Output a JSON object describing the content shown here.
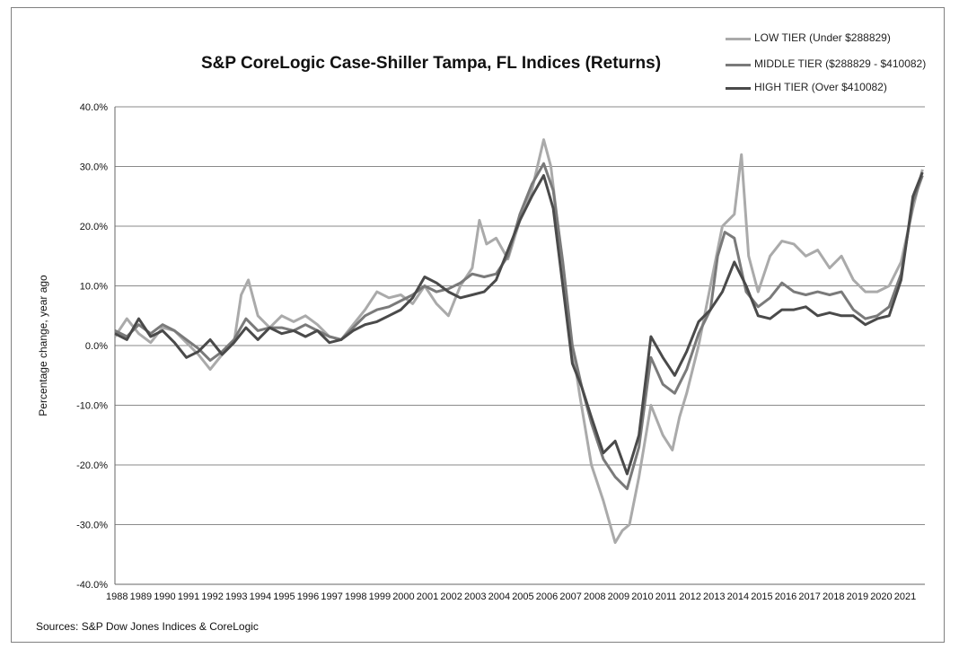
{
  "chart_data": {
    "type": "line",
    "title": "S&P CoreLogic Case-Shiller Tampa, FL Indices (Returns)",
    "ylabel": "Percentage change, year ago",
    "xlabel": "",
    "ylim": [
      -40,
      40
    ],
    "y_ticks": [
      "40.0%",
      "30.0%",
      "20.0%",
      "10.0%",
      "0.0%",
      "-10.0%",
      "-20.0%",
      "-30.0%",
      "-40.0%"
    ],
    "y_tick_values": [
      40,
      30,
      20,
      10,
      0,
      -10,
      -20,
      -30,
      -40
    ],
    "xlim": [
      1988,
      2022
    ],
    "x_ticks": [
      "1988",
      "1989",
      "1990",
      "1991",
      "1992",
      "1993",
      "1994",
      "1995",
      "1996",
      "1997",
      "1998",
      "1999",
      "2000",
      "2001",
      "2002",
      "2003",
      "2004",
      "2005",
      "2006",
      "2007",
      "2008",
      "2009",
      "2010",
      "2011",
      "2012",
      "2013",
      "2014",
      "2015",
      "2016",
      "2017",
      "2018",
      "2019",
      "2020",
      "2021"
    ],
    "grid": "horizontal",
    "legend_position": "top-right",
    "series": [
      {
        "name": "LOW TIER (Under $288829)",
        "color": "#aaaaaa",
        "x": [
          1988.0,
          1988.5,
          1989.0,
          1989.5,
          1990.0,
          1990.5,
          1991.0,
          1991.5,
          1992.0,
          1992.5,
          1993.0,
          1993.3,
          1993.6,
          1994.0,
          1994.5,
          1995.0,
          1995.5,
          1996.0,
          1996.5,
          1997.0,
          1997.5,
          1998.0,
          1998.5,
          1999.0,
          1999.5,
          2000.0,
          2000.5,
          2001.0,
          2001.5,
          2002.0,
          2002.5,
          2003.0,
          2003.3,
          2003.6,
          2004.0,
          2004.5,
          2005.0,
          2005.5,
          2006.0,
          2006.3,
          2006.6,
          2007.0,
          2007.5,
          2008.0,
          2008.5,
          2009.0,
          2009.3,
          2009.6,
          2010.0,
          2010.5,
          2011.0,
          2011.4,
          2011.7,
          2012.0,
          2012.5,
          2013.0,
          2013.5,
          2014.0,
          2014.3,
          2014.6,
          2015.0,
          2015.5,
          2016.0,
          2016.5,
          2017.0,
          2017.5,
          2018.0,
          2018.5,
          2019.0,
          2019.5,
          2020.0,
          2020.5,
          2021.0,
          2021.5,
          2021.9
        ],
        "values": [
          1.5,
          4.5,
          2.0,
          0.5,
          3.0,
          2.5,
          0.5,
          -1.5,
          -4.0,
          -1.5,
          0.5,
          8.5,
          11.0,
          5.0,
          3.0,
          5.0,
          4.0,
          5.0,
          3.5,
          1.5,
          1.0,
          3.5,
          6.0,
          9.0,
          8.0,
          8.5,
          7.0,
          10.0,
          7.0,
          5.0,
          10.0,
          13.0,
          21.0,
          17.0,
          18.0,
          14.5,
          21.0,
          26.0,
          34.5,
          30.0,
          20.0,
          5.0,
          -8.0,
          -20.0,
          -26.0,
          -33.0,
          -31.0,
          -30.0,
          -22.0,
          -10.0,
          -15.0,
          -17.5,
          -12.0,
          -8.0,
          0.0,
          10.0,
          20.0,
          22.0,
          32.0,
          15.0,
          9.0,
          15.0,
          17.5,
          17.0,
          15.0,
          16.0,
          13.0,
          15.0,
          11.0,
          9.0,
          9.0,
          10.0,
          14.0,
          23.0,
          29.5
        ]
      },
      {
        "name": "MIDDLE TIER ($288829 - $410082)",
        "color": "#7a7a7a",
        "x": [
          1988.0,
          1988.5,
          1989.0,
          1989.5,
          1990.0,
          1990.5,
          1991.0,
          1991.5,
          1992.0,
          1992.5,
          1993.0,
          1993.5,
          1994.0,
          1994.5,
          1995.0,
          1995.5,
          1996.0,
          1996.5,
          1997.0,
          1997.5,
          1998.0,
          1998.5,
          1999.0,
          1999.5,
          2000.0,
          2000.5,
          2001.0,
          2001.5,
          2002.0,
          2002.5,
          2003.0,
          2003.5,
          2004.0,
          2004.5,
          2005.0,
          2005.5,
          2006.0,
          2006.4,
          2006.8,
          2007.2,
          2007.6,
          2008.0,
          2008.5,
          2009.0,
          2009.5,
          2010.0,
          2010.5,
          2011.0,
          2011.5,
          2012.0,
          2012.5,
          2013.0,
          2013.3,
          2013.6,
          2014.0,
          2014.5,
          2015.0,
          2015.5,
          2016.0,
          2016.5,
          2017.0,
          2017.5,
          2018.0,
          2018.5,
          2019.0,
          2019.5,
          2020.0,
          2020.5,
          2021.0,
          2021.5,
          2021.9
        ],
        "values": [
          2.5,
          1.5,
          3.5,
          2.0,
          3.5,
          2.5,
          1.0,
          -0.5,
          -2.5,
          -1.0,
          1.0,
          4.5,
          2.5,
          3.0,
          3.0,
          2.5,
          3.5,
          2.5,
          1.5,
          1.0,
          3.0,
          5.0,
          6.0,
          6.5,
          7.5,
          8.5,
          10.0,
          9.0,
          9.5,
          10.5,
          12.0,
          11.5,
          12.0,
          15.0,
          22.0,
          27.0,
          30.5,
          26.0,
          14.0,
          0.0,
          -7.0,
          -13.0,
          -19.0,
          -22.0,
          -24.0,
          -17.0,
          -2.0,
          -6.5,
          -8.0,
          -4.0,
          2.0,
          6.0,
          15.0,
          19.0,
          18.0,
          9.0,
          6.5,
          8.0,
          10.5,
          9.0,
          8.5,
          9.0,
          8.5,
          9.0,
          6.0,
          4.5,
          5.0,
          6.5,
          12.0,
          24.0,
          28.5
        ]
      },
      {
        "name": "HIGH TIER (Over $410082)",
        "color": "#4a4a4a",
        "x": [
          1988.0,
          1988.5,
          1989.0,
          1989.5,
          1990.0,
          1990.5,
          1991.0,
          1991.5,
          1992.0,
          1992.5,
          1993.0,
          1993.5,
          1994.0,
          1994.5,
          1995.0,
          1995.5,
          1996.0,
          1996.5,
          1997.0,
          1997.5,
          1998.0,
          1998.5,
          1999.0,
          1999.5,
          2000.0,
          2000.5,
          2001.0,
          2001.5,
          2002.0,
          2002.5,
          2003.0,
          2003.5,
          2004.0,
          2004.5,
          2005.0,
          2005.5,
          2006.0,
          2006.4,
          2006.8,
          2007.2,
          2007.6,
          2008.0,
          2008.5,
          2009.0,
          2009.5,
          2010.0,
          2010.5,
          2011.0,
          2011.5,
          2012.0,
          2012.5,
          2013.0,
          2013.5,
          2014.0,
          2014.5,
          2015.0,
          2015.5,
          2016.0,
          2016.5,
          2017.0,
          2017.5,
          2018.0,
          2018.5,
          2019.0,
          2019.5,
          2020.0,
          2020.5,
          2021.0,
          2021.5,
          2021.9
        ],
        "values": [
          2.0,
          1.0,
          4.5,
          1.5,
          2.5,
          0.5,
          -2.0,
          -1.0,
          1.0,
          -1.5,
          0.5,
          3.0,
          1.0,
          3.0,
          2.0,
          2.5,
          1.5,
          2.5,
          0.5,
          1.0,
          2.5,
          3.5,
          4.0,
          5.0,
          6.0,
          8.0,
          11.5,
          10.5,
          9.0,
          8.0,
          8.5,
          9.0,
          11.0,
          16.0,
          21.0,
          25.0,
          28.5,
          23.0,
          10.0,
          -3.0,
          -7.0,
          -12.0,
          -18.0,
          -16.0,
          -21.5,
          -15.0,
          1.5,
          -2.0,
          -5.0,
          -1.0,
          4.0,
          6.0,
          9.0,
          14.0,
          10.0,
          5.0,
          4.5,
          6.0,
          6.0,
          6.5,
          5.0,
          5.5,
          5.0,
          5.0,
          3.5,
          4.5,
          5.0,
          11.0,
          25.0,
          29.0
        ]
      }
    ],
    "source": "Sources: S&P Dow Jones Indices & CoreLogic"
  }
}
